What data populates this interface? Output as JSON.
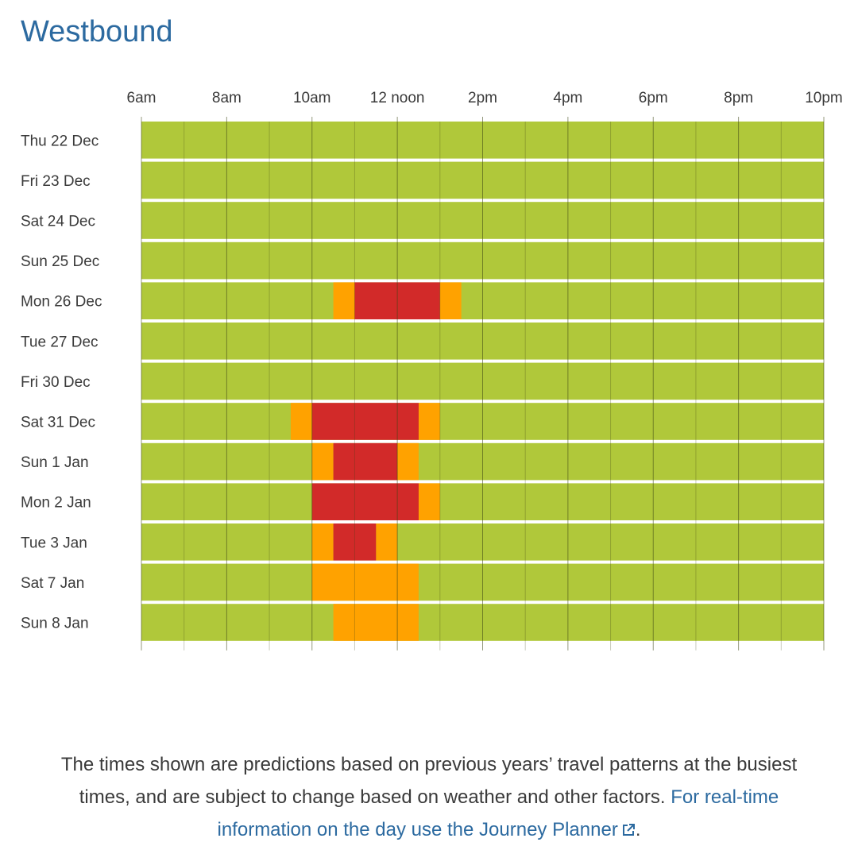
{
  "page": {
    "title": "Westbound",
    "note_text": "The times shown are predictions based on previous years’ travel patterns at the busiest times, and are subject to change based on weather and other factors.",
    "note_link": "For real-time information on the day use the Journey Planner",
    "note_end": ".",
    "link_icon": "external-link-icon"
  },
  "chart_data": {
    "type": "heatmap",
    "title": "Westbound",
    "x_ticks": [
      "6am",
      "8am",
      "10am",
      "12 noon",
      "2pm",
      "4pm",
      "6pm",
      "8pm",
      "10pm"
    ],
    "x_range": [
      6,
      22
    ],
    "x_unit": "hour of day",
    "colors": {
      "normal": "#b0c83a",
      "busy": "#ffa200",
      "very_busy": "#d22a29"
    },
    "rows": [
      {
        "label": "Thu 22 Dec",
        "busy": [],
        "very_busy": []
      },
      {
        "label": "Fri 23 Dec",
        "busy": [],
        "very_busy": []
      },
      {
        "label": "Sat 24 Dec",
        "busy": [],
        "very_busy": []
      },
      {
        "label": "Sun 25 Dec",
        "busy": [],
        "very_busy": []
      },
      {
        "label": "Mon 26 Dec",
        "busy": [
          [
            10.5,
            11
          ],
          [
            13,
            13.5
          ]
        ],
        "very_busy": [
          [
            11,
            13
          ]
        ]
      },
      {
        "label": "Tue 27 Dec",
        "busy": [],
        "very_busy": []
      },
      {
        "label": "Fri 30 Dec",
        "busy": [],
        "very_busy": []
      },
      {
        "label": "Sat 31 Dec",
        "busy": [
          [
            9.5,
            10
          ],
          [
            12.5,
            13
          ]
        ],
        "very_busy": [
          [
            10,
            12.5
          ]
        ]
      },
      {
        "label": "Sun 1 Jan",
        "busy": [
          [
            10,
            10.5
          ],
          [
            12,
            12.5
          ]
        ],
        "very_busy": [
          [
            10.5,
            12
          ]
        ]
      },
      {
        "label": "Mon 2 Jan",
        "busy": [
          [
            12.5,
            13
          ]
        ],
        "very_busy": [
          [
            10,
            12.5
          ]
        ]
      },
      {
        "label": "Tue 3 Jan",
        "busy": [
          [
            10,
            10.5
          ],
          [
            11.5,
            12
          ]
        ],
        "very_busy": [
          [
            10.5,
            11.5
          ]
        ]
      },
      {
        "label": "Sat 7 Jan",
        "busy": [
          [
            10,
            12.5
          ]
        ],
        "very_busy": []
      },
      {
        "label": "Sun 8 Jan",
        "busy": [
          [
            10.5,
            12.5
          ]
        ],
        "very_busy": []
      }
    ]
  }
}
